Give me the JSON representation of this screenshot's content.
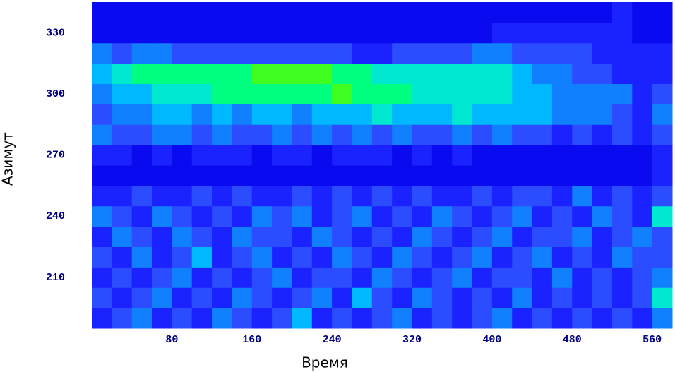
{
  "chart_data": {
    "type": "heatmap",
    "xlabel": "Время",
    "ylabel": "Азимут",
    "xlim": [
      0,
      580
    ],
    "ylim": [
      185,
      345
    ],
    "xticks": [
      80,
      160,
      240,
      320,
      400,
      480,
      560
    ],
    "yticks": [
      210,
      240,
      270,
      300,
      330
    ],
    "xbins": [
      0,
      20,
      40,
      60,
      80,
      100,
      120,
      140,
      160,
      180,
      200,
      220,
      240,
      260,
      280,
      300,
      320,
      340,
      360,
      380,
      400,
      420,
      440,
      460,
      480,
      500,
      520,
      540,
      560,
      580
    ],
    "ybins": [
      185,
      195,
      205,
      215,
      225,
      235,
      245,
      255,
      265,
      275,
      285,
      295,
      305,
      315,
      325,
      335,
      345
    ],
    "colorscale": [
      "#0000e0",
      "#0a0af0",
      "#1a22ff",
      "#2c4cff",
      "#1080ff",
      "#00b8ff",
      "#00e8d0",
      "#00ff80",
      "#40ff20",
      "#a0ff00"
    ],
    "z": [
      [
        2,
        3,
        4,
        2,
        3,
        2,
        4,
        3,
        2,
        3,
        5,
        2,
        3,
        2,
        3,
        4,
        2,
        3,
        2,
        3,
        4,
        2,
        3,
        2,
        3,
        2,
        3,
        2,
        4
      ],
      [
        3,
        2,
        3,
        4,
        2,
        3,
        2,
        4,
        3,
        2,
        3,
        4,
        2,
        5,
        3,
        2,
        4,
        3,
        2,
        3,
        2,
        4,
        2,
        3,
        2,
        3,
        2,
        3,
        6
      ],
      [
        2,
        3,
        2,
        3,
        4,
        2,
        3,
        2,
        3,
        4,
        2,
        3,
        3,
        2,
        4,
        3,
        2,
        3,
        4,
        2,
        3,
        3,
        2,
        4,
        2,
        3,
        2,
        3,
        4
      ],
      [
        3,
        2,
        4,
        2,
        3,
        5,
        2,
        3,
        4,
        2,
        3,
        2,
        4,
        3,
        2,
        4,
        3,
        2,
        3,
        4,
        2,
        3,
        4,
        2,
        3,
        2,
        4,
        3,
        3
      ],
      [
        2,
        4,
        3,
        2,
        4,
        3,
        2,
        4,
        3,
        3,
        2,
        4,
        3,
        2,
        3,
        2,
        4,
        3,
        2,
        3,
        4,
        2,
        3,
        3,
        4,
        2,
        3,
        4,
        3
      ],
      [
        4,
        3,
        2,
        4,
        3,
        2,
        3,
        2,
        4,
        3,
        4,
        2,
        3,
        4,
        2,
        3,
        2,
        4,
        3,
        2,
        3,
        4,
        2,
        3,
        2,
        4,
        3,
        2,
        6
      ],
      [
        2,
        2,
        3,
        2,
        2,
        3,
        2,
        3,
        2,
        2,
        3,
        2,
        3,
        2,
        3,
        2,
        3,
        2,
        2,
        3,
        2,
        3,
        3,
        2,
        4,
        2,
        3,
        2,
        3
      ],
      [
        1,
        1,
        1,
        1,
        1,
        1,
        1,
        1,
        1,
        1,
        1,
        1,
        1,
        1,
        1,
        1,
        1,
        1,
        1,
        1,
        1,
        1,
        1,
        1,
        1,
        1,
        1,
        1,
        2
      ],
      [
        2,
        2,
        1,
        2,
        1,
        2,
        2,
        2,
        1,
        2,
        2,
        1,
        2,
        2,
        2,
        1,
        2,
        1,
        2,
        1,
        1,
        1,
        1,
        1,
        1,
        1,
        1,
        1,
        2
      ],
      [
        4,
        3,
        3,
        4,
        4,
        3,
        4,
        3,
        3,
        4,
        3,
        4,
        3,
        4,
        3,
        4,
        3,
        3,
        4,
        3,
        4,
        3,
        3,
        2,
        3,
        2,
        3,
        2,
        3
      ],
      [
        3,
        4,
        4,
        5,
        5,
        4,
        5,
        4,
        5,
        5,
        4,
        5,
        5,
        5,
        6,
        5,
        5,
        5,
        6,
        5,
        5,
        5,
        5,
        4,
        4,
        4,
        3,
        2,
        4
      ],
      [
        4,
        5,
        5,
        6,
        6,
        6,
        7,
        7,
        7,
        7,
        7,
        7,
        8,
        7,
        7,
        7,
        6,
        6,
        6,
        6,
        6,
        5,
        5,
        4,
        4,
        4,
        4,
        2,
        3
      ],
      [
        5,
        6,
        7,
        7,
        7,
        7,
        7,
        7,
        8,
        8,
        8,
        8,
        7,
        7,
        6,
        6,
        6,
        6,
        6,
        6,
        6,
        5,
        4,
        4,
        3,
        3,
        2,
        2,
        2
      ],
      [
        4,
        3,
        4,
        4,
        3,
        3,
        3,
        3,
        3,
        3,
        3,
        3,
        3,
        2,
        2,
        3,
        3,
        3,
        3,
        4,
        4,
        3,
        3,
        3,
        3,
        2,
        2,
        2,
        2
      ],
      [
        1,
        1,
        1,
        1,
        1,
        1,
        1,
        1,
        1,
        1,
        1,
        1,
        1,
        1,
        1,
        1,
        1,
        1,
        1,
        1,
        2,
        2,
        2,
        2,
        2,
        2,
        2,
        1,
        1
      ],
      [
        1,
        1,
        1,
        1,
        1,
        1,
        1,
        1,
        1,
        1,
        1,
        1,
        1,
        1,
        1,
        1,
        1,
        1,
        1,
        1,
        1,
        1,
        1,
        1,
        1,
        1,
        2,
        1,
        1
      ]
    ]
  }
}
